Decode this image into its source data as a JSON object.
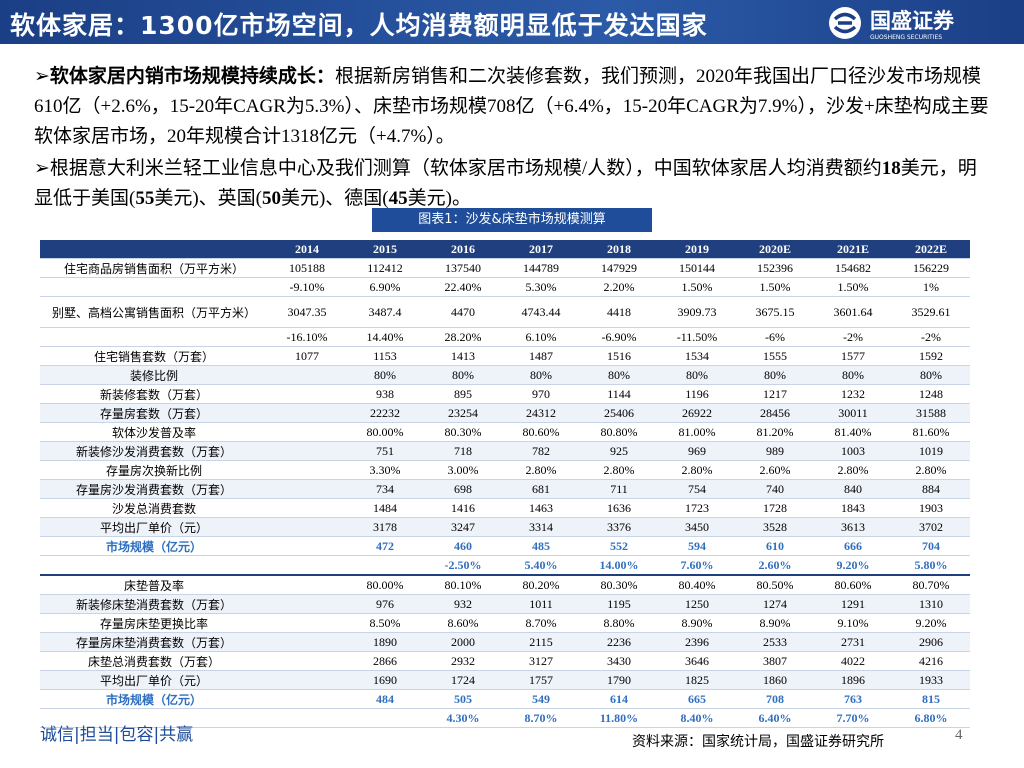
{
  "header": {
    "title": "软体家居：1300亿市场空间，人均消费额明显低于发达国家",
    "logo_text": "国盛证券",
    "logo_subtext": "GUOSHENG SECURITIES"
  },
  "bullets": [
    {
      "lead": "软体家居内销市场规模持续成长：",
      "body": "根据新房销售和二次装修套数，我们预测，2020年我国出厂口径沙发市场规模610亿（+2.6%，15-20年CAGR为5.3%）、床垫市场规模708亿（+6.4%，15-20年CAGR为7.9%），沙发+床垫构成主要软体家居市场，20年规模合计1318亿元（+4.7%）。"
    },
    {
      "parts": [
        "根据意大利米兰轻工业信息中心及我们测算（软体家居市场规模/人数），中国软体家居人均消费额约",
        "18",
        "美元，明显低于美国(",
        "55",
        "美元)、英国(",
        "50",
        "美元)、德国(",
        "45",
        "美元)。"
      ]
    }
  ],
  "caption": "图表1：沙发&床垫市场规模测算",
  "table": {
    "header": [
      null,
      "2014",
      "2015",
      "2016",
      "2017",
      "2018",
      "2019",
      "2020E",
      "2021E",
      "2022E"
    ],
    "rows": [
      [
        "住宅商品房销售面积（万平方米）",
        "105188",
        "112412",
        "137540",
        "144789",
        "147929",
        "150144",
        "152396",
        "154682",
        "156229"
      ],
      [
        null,
        "-9.10%",
        "6.90%",
        "22.40%",
        "5.30%",
        "2.20%",
        "1.50%",
        "1.50%",
        "1.50%",
        "1%"
      ],
      [
        "别墅、高档公寓销售面积（万平方米）",
        "3047.35",
        "3487.4",
        "4470",
        "4743.44",
        "4418",
        "3909.73",
        "3675.15",
        "3601.64",
        "3529.61"
      ],
      [
        null,
        "-16.10%",
        "14.40%",
        "28.20%",
        "6.10%",
        "-6.90%",
        "-11.50%",
        "-6%",
        "-2%",
        "-2%"
      ],
      [
        "住宅销售套数（万套）",
        "1077",
        "1153",
        "1413",
        "1487",
        "1516",
        "1534",
        "1555",
        "1577",
        "1592"
      ],
      [
        "装修比例",
        null,
        "80%",
        "80%",
        "80%",
        "80%",
        "80%",
        "80%",
        "80%",
        "80%"
      ],
      [
        "新装修套数（万套）",
        null,
        "938",
        "895",
        "970",
        "1144",
        "1196",
        "1217",
        "1232",
        "1248"
      ],
      [
        "存量房套数（万套）",
        null,
        "22232",
        "23254",
        "24312",
        "25406",
        "26922",
        "28456",
        "30011",
        "31588"
      ],
      [
        "软体沙发普及率",
        null,
        "80.00%",
        "80.30%",
        "80.60%",
        "80.80%",
        "81.00%",
        "81.20%",
        "81.40%",
        "81.60%"
      ],
      [
        "新装修沙发消费套数（万套）",
        null,
        "751",
        "718",
        "782",
        "925",
        "969",
        "989",
        "1003",
        "1019"
      ],
      [
        "存量房次换新比例",
        null,
        "3.30%",
        "3.00%",
        "2.80%",
        "2.80%",
        "2.80%",
        "2.60%",
        "2.80%",
        "2.80%"
      ],
      [
        "存量房沙发消费套数（万套）",
        null,
        "734",
        "698",
        "681",
        "711",
        "754",
        "740",
        "840",
        "884"
      ],
      [
        "沙发总消费套数",
        null,
        "1484",
        "1416",
        "1463",
        "1636",
        "1723",
        "1728",
        "1843",
        "1903"
      ],
      [
        "平均出厂单价（元）",
        null,
        "3178",
        "3247",
        "3314",
        "3376",
        "3450",
        "3528",
        "3613",
        "3702"
      ],
      [
        "市场规模（亿元）",
        null,
        "472",
        "460",
        "485",
        "552",
        "594",
        "610",
        "666",
        "704"
      ],
      [
        null,
        null,
        null,
        "-2.50%",
        "5.40%",
        "14.00%",
        "7.60%",
        "2.60%",
        "9.20%",
        "5.80%"
      ],
      [
        "床垫普及率",
        null,
        "80.00%",
        "80.10%",
        "80.20%",
        "80.30%",
        "80.40%",
        "80.50%",
        "80.60%",
        "80.70%"
      ],
      [
        "新装修床垫消费套数（万套）",
        null,
        "976",
        "932",
        "1011",
        "1195",
        "1250",
        "1274",
        "1291",
        "1310"
      ],
      [
        "存量房床垫更换比率",
        null,
        "8.50%",
        "8.60%",
        "8.70%",
        "8.80%",
        "8.90%",
        "8.90%",
        "9.10%",
        "9.20%"
      ],
      [
        "存量房床垫消费套数（万套）",
        null,
        "1890",
        "2000",
        "2115",
        "2236",
        "2396",
        "2533",
        "2731",
        "2906"
      ],
      [
        "床垫总消费套数（万套）",
        null,
        "2866",
        "2932",
        "3127",
        "3430",
        "3646",
        "3807",
        "4022",
        "4216"
      ],
      [
        "平均出厂单价（元）",
        null,
        "1690",
        "1724",
        "1757",
        "1790",
        "1825",
        "1860",
        "1896",
        "1933"
      ],
      [
        "市场规模（亿元）",
        null,
        "484",
        "505",
        "549",
        "614",
        "665",
        "708",
        "763",
        "815"
      ],
      [
        null,
        null,
        null,
        "4.30%",
        "8.70%",
        "11.80%",
        "8.40%",
        "6.40%",
        "7.70%",
        "6.80%"
      ]
    ]
  },
  "footer": {
    "slogan": "诚信|担当|包容|共赢",
    "source": "资料来源：国家统计局，国盛证券研究所",
    "page": "4"
  }
}
